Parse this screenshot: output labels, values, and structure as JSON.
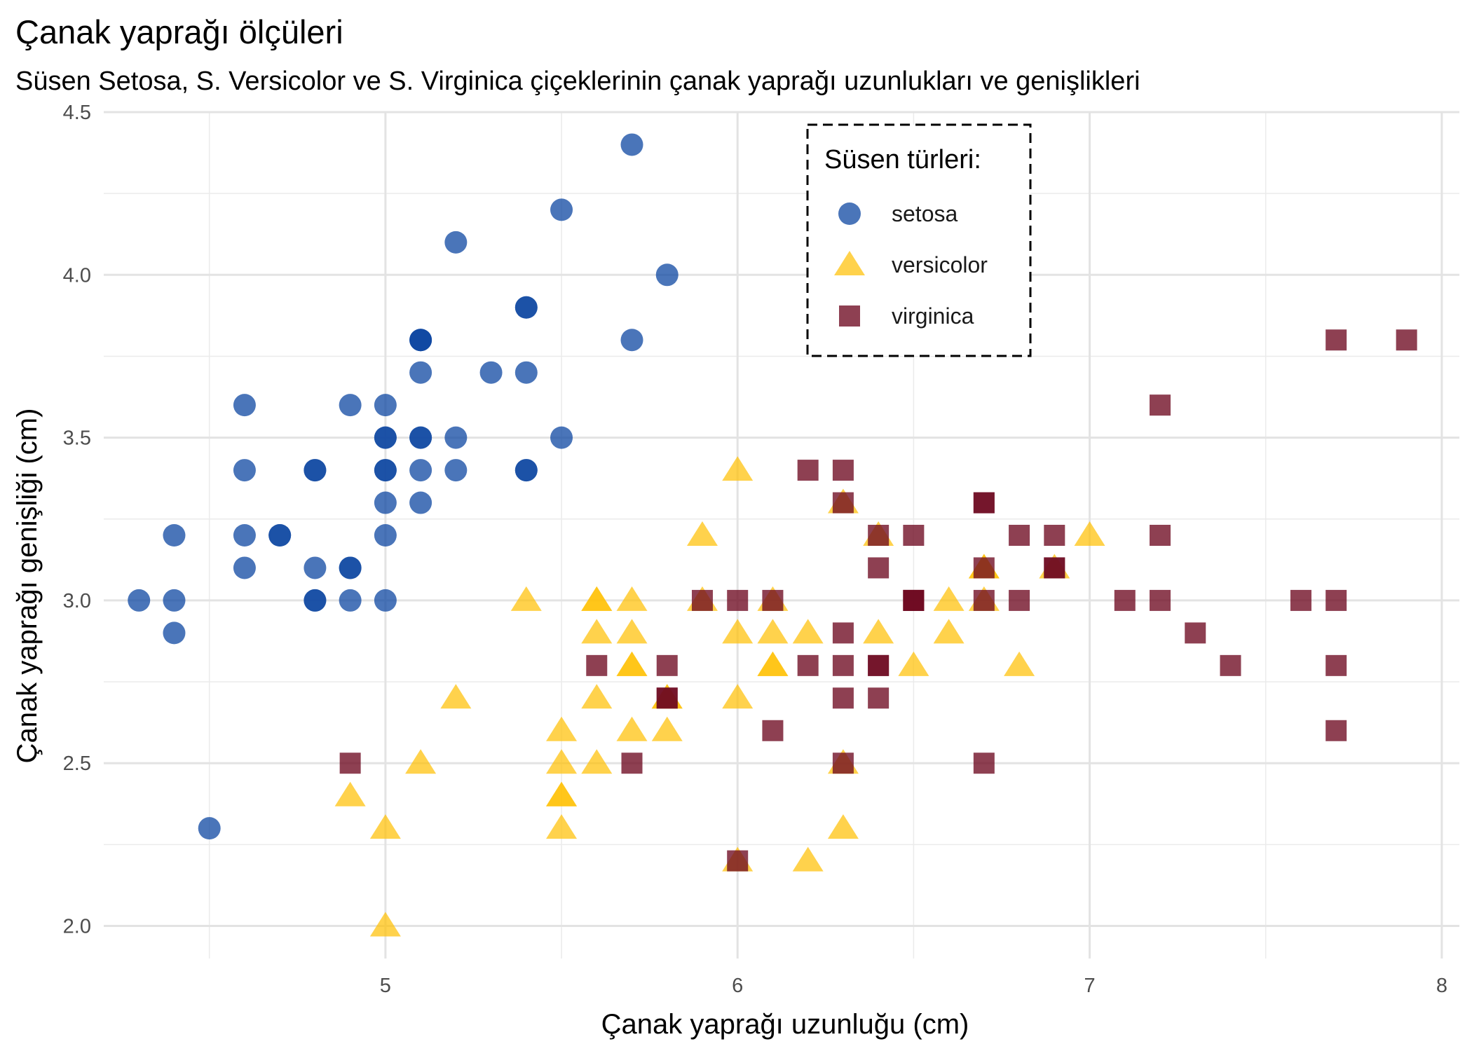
{
  "chart_data": {
    "type": "scatter",
    "title": "Çanak yaprağı ölçüleri",
    "subtitle": "Süsen Setosa, S. Versicolor ve S. Virginica çiçeklerinin çanak yaprağı uzunlukları ve genişlikleri",
    "xlabel": "Çanak yaprağı uzunluğu (cm)",
    "ylabel": "Çanak yaprağı genişliği (cm)",
    "xlim": [
      4.2,
      8.05
    ],
    "ylim": [
      1.9,
      4.5
    ],
    "x_ticks": [
      "5",
      "6",
      "7",
      "8"
    ],
    "y_ticks": [
      "2.0",
      "2.5",
      "3.0",
      "3.5",
      "4.0",
      "4.5"
    ],
    "grid": true,
    "legend": {
      "title": "Süsen türleri:",
      "placement": "top-center",
      "border": "dashed"
    },
    "series": [
      {
        "name": "setosa",
        "marker": "circle",
        "color": "#0d47a1",
        "points": [
          [
            5.1,
            3.5
          ],
          [
            4.9,
            3.0
          ],
          [
            4.7,
            3.2
          ],
          [
            4.6,
            3.1
          ],
          [
            5.0,
            3.6
          ],
          [
            5.4,
            3.9
          ],
          [
            4.6,
            3.4
          ],
          [
            5.0,
            3.4
          ],
          [
            4.4,
            2.9
          ],
          [
            4.9,
            3.1
          ],
          [
            5.4,
            3.7
          ],
          [
            4.8,
            3.4
          ],
          [
            4.8,
            3.0
          ],
          [
            4.3,
            3.0
          ],
          [
            5.8,
            4.0
          ],
          [
            5.7,
            4.4
          ],
          [
            5.4,
            3.9
          ],
          [
            5.1,
            3.5
          ],
          [
            5.7,
            3.8
          ],
          [
            5.1,
            3.8
          ],
          [
            5.4,
            3.4
          ],
          [
            5.1,
            3.7
          ],
          [
            4.6,
            3.6
          ],
          [
            5.1,
            3.3
          ],
          [
            4.8,
            3.4
          ],
          [
            5.0,
            3.0
          ],
          [
            5.0,
            3.4
          ],
          [
            5.2,
            3.5
          ],
          [
            5.2,
            3.4
          ],
          [
            4.7,
            3.2
          ],
          [
            4.8,
            3.1
          ],
          [
            5.4,
            3.4
          ],
          [
            5.2,
            4.1
          ],
          [
            5.5,
            4.2
          ],
          [
            4.9,
            3.1
          ],
          [
            5.0,
            3.2
          ],
          [
            5.5,
            3.5
          ],
          [
            4.9,
            3.6
          ],
          [
            4.4,
            3.0
          ],
          [
            5.1,
            3.4
          ],
          [
            5.0,
            3.5
          ],
          [
            4.5,
            2.3
          ],
          [
            4.4,
            3.2
          ],
          [
            5.0,
            3.5
          ],
          [
            5.1,
            3.8
          ],
          [
            4.8,
            3.0
          ],
          [
            5.1,
            3.8
          ],
          [
            4.6,
            3.2
          ],
          [
            5.3,
            3.7
          ],
          [
            5.0,
            3.3
          ]
        ]
      },
      {
        "name": "versicolor",
        "marker": "triangle",
        "color": "#ffc107",
        "points": [
          [
            7.0,
            3.2
          ],
          [
            6.4,
            3.2
          ],
          [
            6.9,
            3.1
          ],
          [
            5.5,
            2.3
          ],
          [
            6.5,
            2.8
          ],
          [
            5.7,
            2.8
          ],
          [
            6.3,
            3.3
          ],
          [
            4.9,
            2.4
          ],
          [
            6.6,
            2.9
          ],
          [
            5.2,
            2.7
          ],
          [
            5.0,
            2.0
          ],
          [
            5.9,
            3.0
          ],
          [
            6.0,
            2.2
          ],
          [
            6.1,
            2.9
          ],
          [
            5.6,
            2.9
          ],
          [
            6.7,
            3.1
          ],
          [
            5.6,
            3.0
          ],
          [
            5.8,
            2.7
          ],
          [
            6.2,
            2.2
          ],
          [
            5.6,
            2.5
          ],
          [
            5.9,
            3.2
          ],
          [
            6.1,
            2.8
          ],
          [
            6.3,
            2.5
          ],
          [
            6.1,
            2.8
          ],
          [
            6.4,
            2.9
          ],
          [
            6.6,
            3.0
          ],
          [
            6.8,
            2.8
          ],
          [
            6.7,
            3.0
          ],
          [
            6.0,
            2.9
          ],
          [
            5.7,
            2.6
          ],
          [
            5.5,
            2.4
          ],
          [
            5.5,
            2.4
          ],
          [
            5.8,
            2.7
          ],
          [
            6.0,
            2.7
          ],
          [
            5.4,
            3.0
          ],
          [
            6.0,
            3.4
          ],
          [
            6.7,
            3.1
          ],
          [
            6.3,
            2.3
          ],
          [
            5.6,
            3.0
          ],
          [
            5.5,
            2.5
          ],
          [
            5.5,
            2.6
          ],
          [
            6.1,
            3.0
          ],
          [
            5.8,
            2.6
          ],
          [
            5.0,
            2.3
          ],
          [
            5.6,
            2.7
          ],
          [
            5.7,
            3.0
          ],
          [
            5.7,
            2.9
          ],
          [
            6.2,
            2.9
          ],
          [
            5.1,
            2.5
          ],
          [
            5.7,
            2.8
          ]
        ]
      },
      {
        "name": "virginica",
        "marker": "square",
        "color": "#6e0a21",
        "points": [
          [
            6.3,
            3.3
          ],
          [
            5.8,
            2.7
          ],
          [
            7.1,
            3.0
          ],
          [
            6.3,
            2.9
          ],
          [
            6.5,
            3.0
          ],
          [
            7.6,
            3.0
          ],
          [
            4.9,
            2.5
          ],
          [
            7.3,
            2.9
          ],
          [
            6.7,
            2.5
          ],
          [
            7.2,
            3.6
          ],
          [
            6.5,
            3.2
          ],
          [
            6.4,
            2.7
          ],
          [
            6.8,
            3.0
          ],
          [
            5.7,
            2.5
          ],
          [
            5.8,
            2.8
          ],
          [
            6.4,
            3.2
          ],
          [
            6.5,
            3.0
          ],
          [
            7.7,
            3.8
          ],
          [
            7.7,
            2.6
          ],
          [
            6.0,
            2.2
          ],
          [
            6.9,
            3.2
          ],
          [
            5.6,
            2.8
          ],
          [
            7.7,
            2.8
          ],
          [
            6.3,
            2.7
          ],
          [
            6.7,
            3.3
          ],
          [
            7.2,
            3.2
          ],
          [
            6.2,
            2.8
          ],
          [
            6.1,
            3.0
          ],
          [
            6.4,
            2.8
          ],
          [
            7.2,
            3.0
          ],
          [
            7.4,
            2.8
          ],
          [
            7.9,
            3.8
          ],
          [
            6.4,
            2.8
          ],
          [
            6.3,
            2.8
          ],
          [
            6.1,
            2.6
          ],
          [
            7.7,
            3.0
          ],
          [
            6.3,
            3.4
          ],
          [
            6.4,
            3.1
          ],
          [
            6.0,
            3.0
          ],
          [
            6.9,
            3.1
          ],
          [
            6.7,
            3.1
          ],
          [
            6.9,
            3.1
          ],
          [
            5.8,
            2.7
          ],
          [
            6.8,
            3.2
          ],
          [
            6.7,
            3.3
          ],
          [
            6.7,
            3.0
          ],
          [
            6.3,
            2.5
          ],
          [
            6.5,
            3.0
          ],
          [
            6.2,
            3.4
          ],
          [
            5.9,
            3.0
          ]
        ]
      }
    ]
  }
}
